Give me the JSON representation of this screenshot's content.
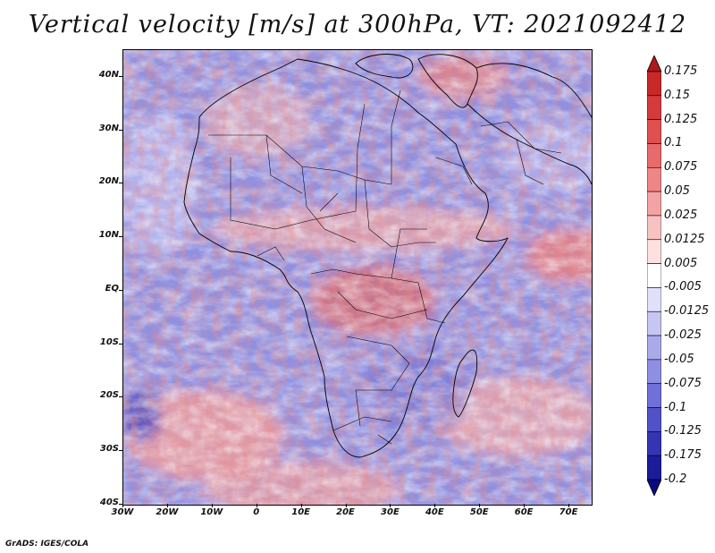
{
  "title": "Vertical velocity [m/s] at 300hPa, VT: 2021092412",
  "map": {
    "lon_range": [
      -30,
      75
    ],
    "lat_range": [
      -40,
      45
    ],
    "lat_ticks": [
      "40N",
      "30N",
      "20N",
      "10N",
      "EQ",
      "10S",
      "20S",
      "30S",
      "40S"
    ],
    "lon_ticks": [
      "30W",
      "20W",
      "10W",
      "0",
      "10E",
      "20E",
      "30E",
      "40E",
      "50E",
      "60E",
      "70E"
    ]
  },
  "colorbar": {
    "labels": [
      "0.175",
      "0.15",
      "0.125",
      "0.1",
      "0.075",
      "0.05",
      "0.025",
      "0.0125",
      "0.005",
      "-0.005",
      "-0.0125",
      "-0.025",
      "-0.05",
      "-0.075",
      "-0.1",
      "-0.125",
      "-0.175",
      "-0.2"
    ],
    "colors": [
      "#b01818",
      "#c82828",
      "#d63b3b",
      "#e05050",
      "#e86a6a",
      "#ee8686",
      "#f3a3a3",
      "#f8c2c2",
      "#fde0e0",
      "#ffffff",
      "#e0e0fb",
      "#c6c6f3",
      "#aaaaeb",
      "#8e8ee3",
      "#7070d8",
      "#5252c8",
      "#3434b4",
      "#1c1c9a",
      "#0a0a80"
    ]
  },
  "credit": "GrADS: IGES/COLA"
}
